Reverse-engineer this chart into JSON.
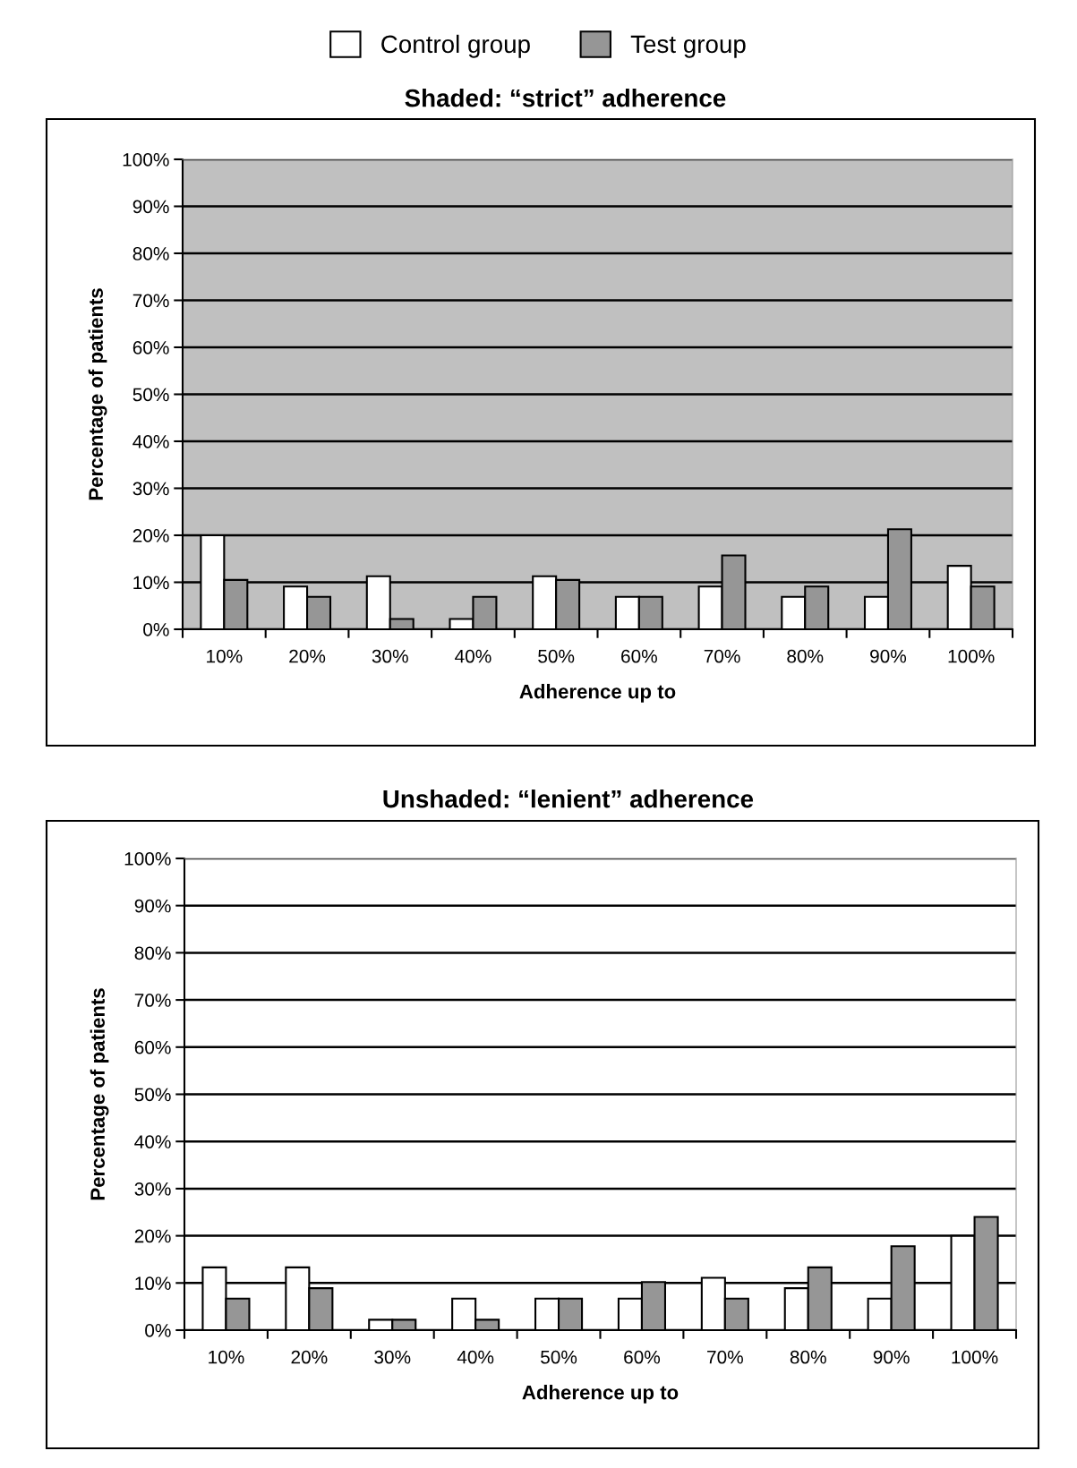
{
  "chart_data": [
    {
      "type": "bar",
      "title": "Shaded: “strict” adherence",
      "xlabel": "Adherence up to",
      "ylabel": "Percentage of patients",
      "categories": [
        "10%",
        "20%",
        "30%",
        "40%",
        "50%",
        "60%",
        "70%",
        "80%",
        "90%",
        "100%"
      ],
      "series": [
        {
          "name": "Control group",
          "color": "#ffffff",
          "values": [
            20.0,
            9.1,
            11.3,
            2.2,
            11.3,
            6.9,
            9.1,
            6.9,
            6.9,
            13.5
          ]
        },
        {
          "name": "Test group",
          "color": "#969696",
          "values": [
            10.5,
            6.9,
            2.2,
            6.9,
            10.5,
            6.9,
            15.7,
            9.1,
            21.3,
            9.1
          ]
        }
      ],
      "ylim": [
        0,
        100
      ],
      "yticks": [
        {
          "value": 0,
          "label": "0%"
        },
        {
          "value": 10,
          "label": "10%"
        },
        {
          "value": 20,
          "label": "20%"
        },
        {
          "value": 30,
          "label": "30%"
        },
        {
          "value": 40,
          "label": "40%"
        },
        {
          "value": 50,
          "label": "50%"
        },
        {
          "value": 60,
          "label": "60%"
        },
        {
          "value": 70,
          "label": "70%"
        },
        {
          "value": 80,
          "label": "80%"
        },
        {
          "value": 90,
          "label": "90%"
        },
        {
          "value": 100,
          "label": "100%"
        }
      ],
      "bands": [
        {
          "axis": "y",
          "from": 0,
          "to": 100,
          "color": "#c0c0c0"
        }
      ],
      "grid": "y",
      "legend": "top"
    },
    {
      "type": "bar",
      "title": "Unshaded: “lenient” adherence",
      "xlabel": "Adherence up to",
      "ylabel": "Percentage of patients",
      "categories": [
        "10%",
        "20%",
        "30%",
        "40%",
        "50%",
        "60%",
        "70%",
        "80%",
        "90%",
        "100%"
      ],
      "series": [
        {
          "color": "#ffffff",
          "values": [
            13.3,
            13.3,
            2.2,
            6.7,
            6.7,
            6.7,
            11.1,
            8.9,
            6.7,
            20.0
          ]
        },
        {
          "color": "#969696",
          "values": [
            6.7,
            8.9,
            2.2,
            2.2,
            6.7,
            10.2,
            6.7,
            13.3,
            17.8,
            24.0
          ]
        }
      ],
      "ylim": [
        0,
        100
      ],
      "yticks": [
        {
          "value": 0,
          "label": "0%"
        },
        {
          "value": 10,
          "label": "10%"
        },
        {
          "value": 20,
          "label": "20%"
        },
        {
          "value": 30,
          "label": "30%"
        },
        {
          "value": 40,
          "label": "40%"
        },
        {
          "value": 50,
          "label": "50%"
        },
        {
          "value": 60,
          "label": "60%"
        },
        {
          "value": 70,
          "label": "70%"
        },
        {
          "value": 80,
          "label": "80%"
        },
        {
          "value": 90,
          "label": "90%"
        },
        {
          "value": 100,
          "label": "100%"
        }
      ],
      "grid": "y"
    }
  ]
}
